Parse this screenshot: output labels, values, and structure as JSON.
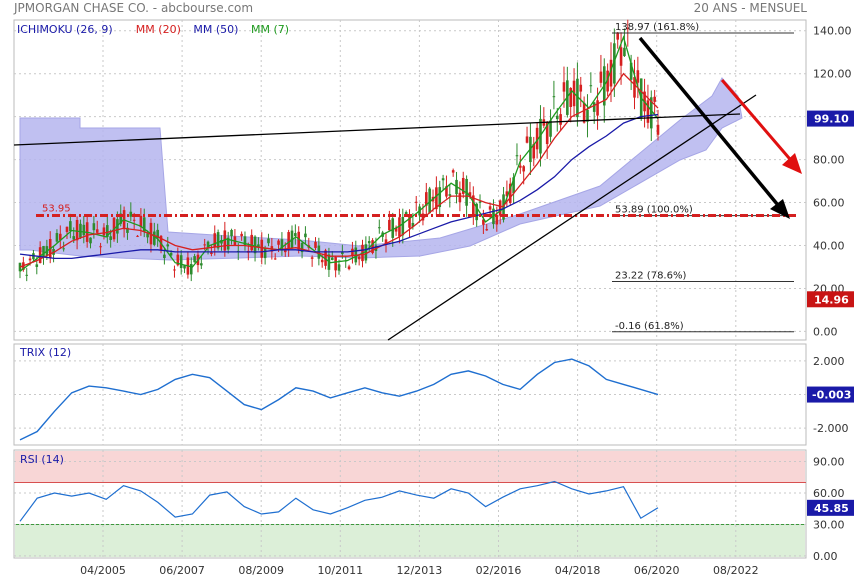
{
  "header": {
    "title": "JPMORGAN CHASE CO. - abcbourse.com",
    "period": "20 ANS - MENSUEL"
  },
  "colors": {
    "price_up": "#2e8b2e",
    "price_down": "#d62020",
    "mm20": "#d62020",
    "mm50": "#1a1aa8",
    "mm7": "#1e9a1e",
    "cloud": "#b5b5ee",
    "trend_line": "#000000",
    "projection_arrow": "#e01010",
    "support_line": "#d42020",
    "last_price_badge": "#1a1aa8",
    "stop_badge": "#c81414",
    "indicator_line": "#1f6fd0",
    "rsi_overbought_zone": "#f8d6d6",
    "rsi_oversold_zone": "#dcefd8"
  },
  "chart_data": [
    {
      "type": "line",
      "legend": [
        {
          "label": "ICHIMOKU (26, 9)",
          "color": "#1a1aa8"
        },
        {
          "label": "MM (20)",
          "color": "#d62020"
        },
        {
          "label": "MM (50)",
          "color": "#1a1aa8"
        },
        {
          "label": "MM (7)",
          "color": "#1e9a1e"
        }
      ],
      "x_ticks": [
        "04/2005",
        "06/2007",
        "08/2009",
        "10/2011",
        "12/2013",
        "02/2016",
        "04/2018",
        "06/2020",
        "08/2022"
      ],
      "y_ticks": [
        "140.00",
        "120.00",
        "100.00",
        "80.00",
        "60.00",
        "40.00",
        "20.00",
        "0.00"
      ],
      "ylim": [
        -4,
        145
      ],
      "grid": true,
      "series": [
        {
          "name": "MM (7)",
          "values": [
            28,
            34,
            40,
            47,
            46,
            44,
            52,
            49,
            43,
            32,
            30,
            40,
            43,
            41,
            39,
            38,
            44,
            38,
            32,
            33,
            37,
            45,
            49,
            55,
            62,
            69,
            64,
            51,
            57,
            79,
            89,
            101,
            112,
            104,
            116,
            137,
            109,
            99
          ]
        },
        {
          "name": "MM (20)",
          "values": [
            30,
            33,
            37,
            42,
            45,
            46,
            48,
            47,
            44,
            40,
            38,
            39,
            40,
            40,
            39,
            38,
            39,
            37,
            35,
            35,
            36,
            40,
            44,
            50,
            57,
            63,
            63,
            60,
            58,
            68,
            78,
            90,
            100,
            104,
            108,
            120,
            112,
            104
          ]
        },
        {
          "name": "MM (50)",
          "values": [
            36,
            35,
            34,
            34,
            35,
            36,
            37,
            38,
            38,
            37,
            37,
            37,
            37,
            37,
            37,
            38,
            38,
            37,
            37,
            37,
            38,
            40,
            42,
            45,
            48,
            51,
            53,
            55,
            57,
            61,
            66,
            72,
            80,
            86,
            91,
            97,
            100,
            101
          ]
        }
      ],
      "fibonacci": [
        {
          "value": 138.97,
          "label": "138.97",
          "pct": "(161.8%)"
        },
        {
          "value": 53.89,
          "label": "53.89",
          "pct": "(100.0%)"
        },
        {
          "value": 23.22,
          "label": "23.22",
          "pct": "(78.6%)"
        },
        {
          "value": -0.16,
          "label": "-0.16",
          "pct": "(61.8%)"
        }
      ],
      "support": {
        "value": 53.95,
        "label": "53.95"
      },
      "badges": [
        {
          "value": 99.1,
          "label": "99.10"
        },
        {
          "value": 14.96,
          "label": "14.96"
        }
      ]
    },
    {
      "type": "line",
      "title": "TRIX (12)",
      "y_ticks": [
        "2.000",
        "0.000",
        "-2.000"
      ],
      "ylim": [
        -3.0,
        3.0
      ],
      "values": [
        -2.7,
        -2.2,
        -1.0,
        0.1,
        0.5,
        0.4,
        0.2,
        0.0,
        0.3,
        0.9,
        1.2,
        1.0,
        0.2,
        -0.6,
        -0.9,
        -0.3,
        0.4,
        0.2,
        -0.2,
        0.1,
        0.4,
        0.1,
        -0.1,
        0.2,
        0.6,
        1.2,
        1.4,
        1.1,
        0.6,
        0.3,
        1.2,
        1.9,
        2.1,
        1.7,
        0.9,
        0.6,
        0.3,
        -0.003
      ],
      "badge": {
        "value": -0.003,
        "label": "-0.003"
      }
    },
    {
      "type": "line",
      "title": "RSI (14)",
      "y_ticks": [
        "90.00",
        "60.00",
        "30.00",
        "0.00"
      ],
      "ylim": [
        -2,
        101
      ],
      "zones": {
        "overbought": 70,
        "oversold": 30
      },
      "values": [
        33,
        55,
        60,
        57,
        60,
        54,
        67,
        62,
        51,
        37,
        40,
        58,
        61,
        47,
        40,
        42,
        55,
        44,
        40,
        46,
        53,
        56,
        62,
        58,
        55,
        64,
        60,
        47,
        56,
        64,
        67,
        71,
        64,
        59,
        62,
        66,
        36,
        46
      ],
      "badge": {
        "value": 45.85,
        "label": "45.85"
      }
    }
  ]
}
